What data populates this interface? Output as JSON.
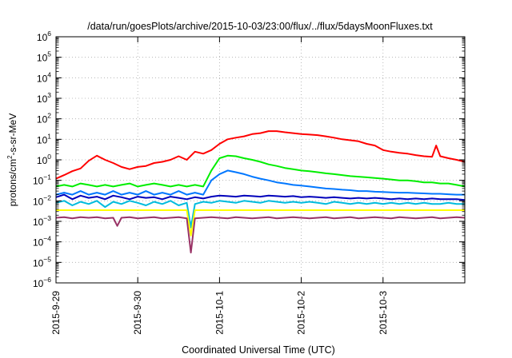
{
  "chart_data": {
    "type": "line",
    "title": "/data/run/goesPlots/archive/2015-10-03/23:00/flux/../flux/5daysMoonFluxes.txt",
    "xlabel": "Coordinated Universal Time (UTC)",
    "ylabel": "protons/cm²-s-sr-MeV",
    "ylabel_parts": {
      "base": "protons/cm",
      "sup": "2",
      "rest": "-s-sr-MeV"
    },
    "x_unit": "days since 2015-09-29 00:00 UTC",
    "xlim": [
      0,
      5
    ],
    "x_ticks": [
      {
        "x": 0,
        "label": "2015-9-29"
      },
      {
        "x": 1,
        "label": "2015-9-30"
      },
      {
        "x": 2,
        "label": "2015-10-1"
      },
      {
        "x": 3,
        "label": "2015-10-2"
      },
      {
        "x": 4,
        "label": "2015-10-3"
      }
    ],
    "y_scale": "log",
    "ylim": [
      1e-06,
      1000000.0
    ],
    "y_tick_exponents": [
      -6,
      -5,
      -4,
      -3,
      -2,
      -1,
      0,
      1,
      2,
      3,
      4,
      5,
      6
    ],
    "y_tick_base": "10",
    "grid": true,
    "series": [
      {
        "color": "#ff0000",
        "x": [
          0,
          0.1,
          0.2,
          0.3,
          0.4,
          0.5,
          0.6,
          0.7,
          0.8,
          0.9,
          1.0,
          1.1,
          1.2,
          1.3,
          1.4,
          1.5,
          1.6,
          1.7,
          1.8,
          1.9,
          2.0,
          2.1,
          2.2,
          2.3,
          2.4,
          2.5,
          2.6,
          2.7,
          2.8,
          2.9,
          3.0,
          3.1,
          3.2,
          3.3,
          3.4,
          3.5,
          3.6,
          3.7,
          3.8,
          3.9,
          4.0,
          4.1,
          4.2,
          4.3,
          4.4,
          4.5,
          4.6,
          4.65,
          4.7,
          4.8,
          4.9,
          5.0
        ],
        "values": [
          0.12,
          0.18,
          0.28,
          0.38,
          0.9,
          1.6,
          1.0,
          0.7,
          0.45,
          0.35,
          0.45,
          0.5,
          0.7,
          0.8,
          1.0,
          1.5,
          1.0,
          2.5,
          2.0,
          3.0,
          6.0,
          10,
          12,
          14,
          18,
          20,
          25,
          25,
          22,
          20,
          18,
          17,
          16,
          14,
          12,
          10,
          9,
          8,
          6,
          5,
          3.0,
          2.5,
          2.2,
          2.0,
          1.7,
          1.5,
          1.4,
          5.0,
          1.5,
          1.2,
          1.0,
          0.8
        ]
      },
      {
        "color": "#00ee00",
        "x": [
          0,
          0.1,
          0.2,
          0.3,
          0.4,
          0.5,
          0.6,
          0.7,
          0.8,
          0.9,
          1.0,
          1.1,
          1.2,
          1.3,
          1.4,
          1.5,
          1.6,
          1.7,
          1.8,
          1.9,
          2.0,
          2.1,
          2.2,
          2.3,
          2.4,
          2.5,
          2.6,
          2.7,
          2.8,
          2.9,
          3.0,
          3.1,
          3.2,
          3.3,
          3.4,
          3.5,
          3.6,
          3.7,
          3.8,
          3.9,
          4.0,
          4.1,
          4.2,
          4.3,
          4.4,
          4.5,
          4.6,
          4.7,
          4.8,
          4.9,
          5.0
        ],
        "values": [
          0.05,
          0.06,
          0.05,
          0.07,
          0.06,
          0.05,
          0.06,
          0.05,
          0.06,
          0.07,
          0.05,
          0.06,
          0.07,
          0.06,
          0.05,
          0.06,
          0.05,
          0.06,
          0.05,
          0.3,
          1.2,
          1.6,
          1.5,
          1.2,
          1.0,
          0.8,
          0.6,
          0.5,
          0.4,
          0.35,
          0.3,
          0.28,
          0.25,
          0.22,
          0.2,
          0.18,
          0.16,
          0.15,
          0.14,
          0.13,
          0.12,
          0.11,
          0.1,
          0.1,
          0.09,
          0.08,
          0.08,
          0.07,
          0.07,
          0.06,
          0.05
        ]
      },
      {
        "color": "#0077ff",
        "x": [
          0,
          0.1,
          0.2,
          0.3,
          0.4,
          0.5,
          0.6,
          0.7,
          0.8,
          0.9,
          1.0,
          1.1,
          1.2,
          1.3,
          1.4,
          1.5,
          1.6,
          1.7,
          1.8,
          1.9,
          2.0,
          2.1,
          2.2,
          2.3,
          2.4,
          2.5,
          2.6,
          2.7,
          2.8,
          2.9,
          3.0,
          3.1,
          3.2,
          3.3,
          3.4,
          3.5,
          3.6,
          3.7,
          3.8,
          3.9,
          4.0,
          4.1,
          4.2,
          4.3,
          4.4,
          4.5,
          4.6,
          4.7,
          4.8,
          4.9,
          5.0
        ],
        "values": [
          0.02,
          0.025,
          0.02,
          0.03,
          0.02,
          0.025,
          0.02,
          0.03,
          0.02,
          0.025,
          0.02,
          0.03,
          0.02,
          0.025,
          0.02,
          0.03,
          0.02,
          0.025,
          0.02,
          0.1,
          0.2,
          0.3,
          0.25,
          0.2,
          0.15,
          0.12,
          0.1,
          0.08,
          0.07,
          0.06,
          0.055,
          0.05,
          0.045,
          0.04,
          0.038,
          0.035,
          0.033,
          0.03,
          0.03,
          0.028,
          0.027,
          0.026,
          0.025,
          0.025,
          0.024,
          0.023,
          0.022,
          0.022,
          0.021,
          0.02,
          0.02
        ]
      },
      {
        "color": "#0000bb",
        "x": [
          0,
          0.1,
          0.2,
          0.3,
          0.4,
          0.5,
          0.6,
          0.7,
          0.8,
          0.9,
          1.0,
          1.1,
          1.2,
          1.3,
          1.4,
          1.5,
          1.6,
          1.7,
          1.8,
          1.9,
          2.0,
          2.1,
          2.2,
          2.3,
          2.4,
          2.5,
          2.6,
          2.7,
          2.8,
          2.9,
          3.0,
          3.1,
          3.2,
          3.3,
          3.4,
          3.5,
          3.6,
          3.7,
          3.8,
          3.9,
          4.0,
          4.1,
          4.2,
          4.3,
          4.4,
          4.5,
          4.6,
          4.7,
          4.8,
          4.9,
          5.0
        ],
        "values": [
          0.015,
          0.02,
          0.012,
          0.018,
          0.014,
          0.016,
          0.012,
          0.018,
          0.015,
          0.012,
          0.016,
          0.014,
          0.015,
          0.012,
          0.016,
          0.014,
          0.012,
          0.015,
          0.013,
          0.016,
          0.018,
          0.017,
          0.016,
          0.018,
          0.017,
          0.016,
          0.018,
          0.017,
          0.016,
          0.017,
          0.015,
          0.016,
          0.015,
          0.014,
          0.015,
          0.014,
          0.013,
          0.014,
          0.013,
          0.014,
          0.013,
          0.012,
          0.013,
          0.012,
          0.013,
          0.012,
          0.013,
          0.012,
          0.012,
          0.012,
          0.011
        ]
      },
      {
        "color": "#00bbdd",
        "x": [
          0,
          0.1,
          0.2,
          0.3,
          0.4,
          0.5,
          0.6,
          0.7,
          0.8,
          0.9,
          1.0,
          1.1,
          1.2,
          1.3,
          1.4,
          1.5,
          1.6,
          1.65,
          1.7,
          1.8,
          1.9,
          2.0,
          2.1,
          2.2,
          2.3,
          2.4,
          2.5,
          2.6,
          2.7,
          2.8,
          2.9,
          3.0,
          3.1,
          3.2,
          3.3,
          3.4,
          3.5,
          3.6,
          3.7,
          3.8,
          3.9,
          4.0,
          4.1,
          4.2,
          4.3,
          4.4,
          4.5,
          4.6,
          4.7,
          4.8,
          4.9,
          5.0
        ],
        "values": [
          0.008,
          0.01,
          0.006,
          0.009,
          0.007,
          0.01,
          0.005,
          0.009,
          0.007,
          0.01,
          0.008,
          0.006,
          0.009,
          0.007,
          0.01,
          0.006,
          0.008,
          0.0005,
          0.007,
          0.009,
          0.008,
          0.01,
          0.009,
          0.008,
          0.01,
          0.009,
          0.008,
          0.01,
          0.009,
          0.008,
          0.009,
          0.008,
          0.009,
          0.008,
          0.007,
          0.009,
          0.008,
          0.007,
          0.008,
          0.007,
          0.008,
          0.007,
          0.008,
          0.007,
          0.008,
          0.007,
          0.008,
          0.007,
          0.007,
          0.008,
          0.007,
          0.007
        ]
      },
      {
        "color": "#ffff00",
        "x": [
          0,
          0.5,
          1.0,
          1.5,
          1.6,
          1.65,
          1.7,
          2.0,
          2.5,
          3.0,
          3.5,
          4.0,
          4.5,
          5.0
        ],
        "values": [
          0.0035,
          0.0035,
          0.0035,
          0.0035,
          0.0035,
          0.0002,
          0.0035,
          0.0035,
          0.0035,
          0.0035,
          0.0035,
          0.0035,
          0.0035,
          0.0035
        ]
      },
      {
        "color": "#993366",
        "x": [
          0,
          0.1,
          0.2,
          0.3,
          0.4,
          0.5,
          0.6,
          0.7,
          0.75,
          0.8,
          0.9,
          1.0,
          1.1,
          1.2,
          1.3,
          1.4,
          1.5,
          1.6,
          1.65,
          1.7,
          1.8,
          1.9,
          2.0,
          2.1,
          2.2,
          2.3,
          2.4,
          2.5,
          2.6,
          2.7,
          2.8,
          2.9,
          3.0,
          3.1,
          3.2,
          3.3,
          3.4,
          3.5,
          3.6,
          3.7,
          3.8,
          3.9,
          4.0,
          4.1,
          4.2,
          4.3,
          4.4,
          4.5,
          4.6,
          4.7,
          4.8,
          4.9,
          5.0
        ],
        "values": [
          0.0015,
          0.0016,
          0.0014,
          0.0016,
          0.0015,
          0.0016,
          0.0014,
          0.0015,
          0.0006,
          0.0015,
          0.0016,
          0.0014,
          0.0015,
          0.0016,
          0.0014,
          0.0015,
          0.0016,
          0.0014,
          3e-05,
          0.0014,
          0.0015,
          0.0016,
          0.0015,
          0.0014,
          0.0016,
          0.0015,
          0.0014,
          0.0015,
          0.0016,
          0.0014,
          0.0015,
          0.0016,
          0.0015,
          0.0014,
          0.0015,
          0.0016,
          0.0014,
          0.0015,
          0.0016,
          0.0014,
          0.0015,
          0.0016,
          0.0015,
          0.0014,
          0.0016,
          0.0015,
          0.0014,
          0.0015,
          0.0016,
          0.0014,
          0.0015,
          0.0016,
          0.0015
        ]
      }
    ]
  }
}
